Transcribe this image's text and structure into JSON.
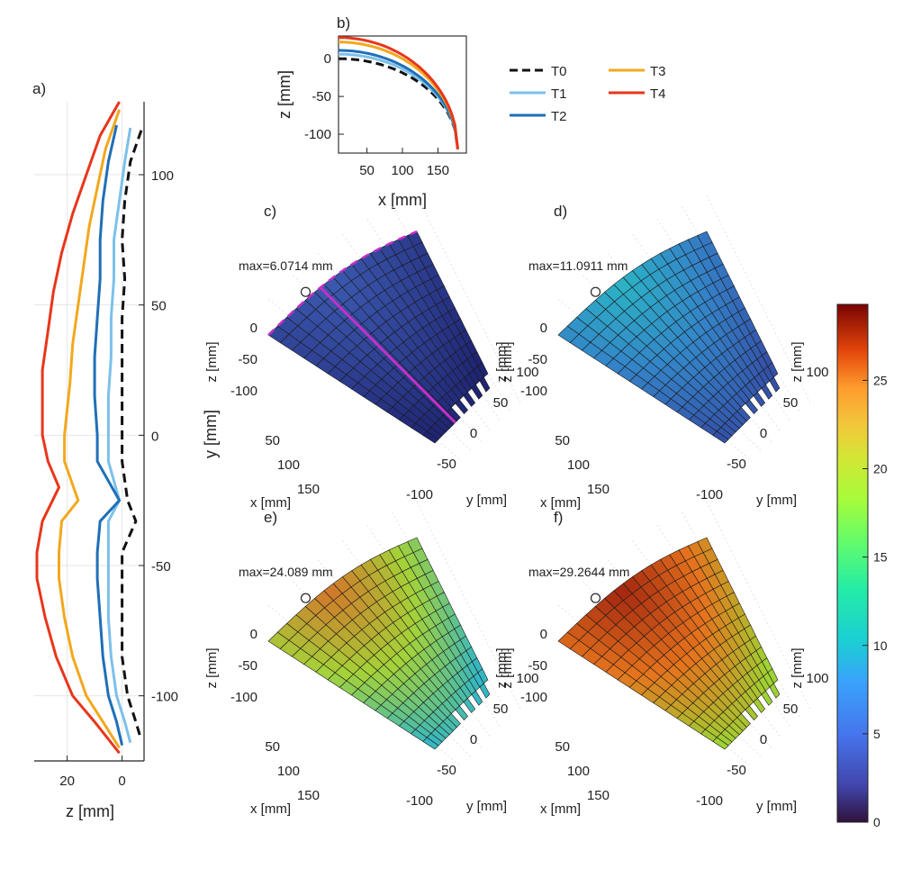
{
  "colors": {
    "T0": "#111111",
    "T1": "#7cc0ea",
    "T2": "#1f6fb7",
    "T3": "#f2a81d",
    "T4": "#e8361b",
    "highlight": "#c62fc6"
  },
  "panel_labels": {
    "a": "a)",
    "b": "b)",
    "c": "c)",
    "d": "d)",
    "e": "e)",
    "f": "f)"
  },
  "legend": [
    {
      "key": "T0",
      "label": "T0",
      "color": "#111111",
      "style": "dashed"
    },
    {
      "key": "T1",
      "label": "T1",
      "color": "#7cc0ea",
      "style": "solid"
    },
    {
      "key": "T2",
      "label": "T2",
      "color": "#1f6fb7",
      "style": "solid"
    },
    {
      "key": "T3",
      "label": "T3",
      "color": "#f2a81d",
      "style": "solid"
    },
    {
      "key": "T4",
      "label": "T4",
      "color": "#e8361b",
      "style": "solid"
    }
  ],
  "surface_axes": {
    "z_label": "z [mm]",
    "x_label": "x [mm]",
    "y_label": "y [mm]",
    "c_y_label": "y [mm]",
    "z_ticks": [
      "0",
      "-50",
      "-100"
    ],
    "x_ticks": [
      "50",
      "100",
      "150"
    ],
    "y_ticks": [
      "-100",
      "-50",
      "0",
      "50",
      "100"
    ]
  },
  "chart_data": [
    {
      "id": "a",
      "type": "line",
      "xlabel": "z [mm]",
      "ylabel": "",
      "x_ticks": [
        20,
        0
      ],
      "y_ticks": [
        100,
        50,
        0,
        -50,
        -100
      ],
      "xlim": [
        32,
        -8
      ],
      "ylim": [
        -125,
        128
      ],
      "series": [
        {
          "name": "T0",
          "y": [
            117,
            105,
            90,
            75,
            60,
            45,
            30,
            15,
            0,
            -10,
            -25,
            -33,
            -45,
            -55,
            -70,
            -85,
            -100,
            -110,
            -117
          ],
          "z": [
            -7,
            -3,
            -1,
            0,
            -1,
            0,
            0,
            0,
            0,
            0,
            -2,
            -5,
            0,
            0,
            0,
            0,
            -2,
            -5,
            -7
          ]
        },
        {
          "name": "T1",
          "y": [
            118,
            105,
            90,
            75,
            60,
            45,
            30,
            15,
            0,
            -10,
            -25,
            -33,
            -45,
            -55,
            -70,
            -85,
            -100,
            -110,
            -118
          ],
          "z": [
            -3,
            -1,
            1,
            3,
            3,
            4,
            4,
            5,
            5,
            5,
            1,
            5,
            5,
            5,
            5,
            4,
            2,
            -1,
            -3
          ]
        },
        {
          "name": "T2",
          "y": [
            119,
            105,
            90,
            75,
            60,
            45,
            30,
            15,
            0,
            -10,
            -25,
            -33,
            -45,
            -55,
            -70,
            -85,
            -100,
            -110,
            -119
          ],
          "z": [
            2,
            5,
            7,
            8,
            8,
            9,
            10,
            10,
            9,
            9,
            1,
            8,
            9,
            9,
            8,
            7,
            5,
            2,
            0
          ]
        },
        {
          "name": "T3",
          "y": [
            125,
            110,
            95,
            80,
            65,
            50,
            35,
            20,
            0,
            -10,
            -25,
            -33,
            -45,
            -55,
            -70,
            -85,
            -100,
            -110,
            -120
          ],
          "z": [
            1,
            6,
            9,
            12,
            14,
            16,
            18,
            19,
            21,
            21,
            16,
            22,
            23,
            23,
            21,
            18,
            13,
            7,
            1
          ]
        },
        {
          "name": "T4",
          "y": [
            128,
            115,
            100,
            85,
            70,
            55,
            40,
            25,
            0,
            -10,
            -20,
            -33,
            -45,
            -55,
            -70,
            -85,
            -100,
            -110,
            -122
          ],
          "z": [
            1,
            8,
            13,
            18,
            22,
            25,
            27,
            29,
            29,
            27,
            23,
            29,
            31,
            31,
            28,
            24,
            18,
            10,
            1
          ]
        }
      ]
    },
    {
      "id": "b",
      "type": "line",
      "xlabel": "x [mm]",
      "ylabel": "z [mm]",
      "x_ticks": [
        50,
        100,
        150
      ],
      "y_ticks": [
        0,
        -50,
        -100
      ],
      "xlim": [
        10,
        190
      ],
      "ylim": [
        -125,
        30
      ],
      "series": [
        {
          "name": "T0",
          "offset": 0
        },
        {
          "name": "T1",
          "offset": 6
        },
        {
          "name": "T2",
          "offset": 11
        },
        {
          "name": "T3",
          "offset": 22
        },
        {
          "name": "T4",
          "offset": 28
        }
      ]
    },
    {
      "id": "c",
      "type": "surface",
      "title": "c)",
      "max_label": "max=6.0714 mm",
      "max_value": 6.0714,
      "palette": [
        "#1f2472",
        "#2f4194",
        "#3b5ab0"
      ]
    },
    {
      "id": "d",
      "type": "surface",
      "title": "d)",
      "max_label": "max=11.0911 mm",
      "max_value": 11.0911,
      "palette": [
        "#3451a8",
        "#3484c8",
        "#2bb4c5"
      ]
    },
    {
      "id": "e",
      "type": "surface",
      "title": "e)",
      "max_label": "max=24.089 mm",
      "max_value": 24.089,
      "palette": [
        "#34b7c3",
        "#a5d238",
        "#d3742a"
      ]
    },
    {
      "id": "f",
      "type": "surface",
      "title": "f)",
      "max_label": "max=29.2644 mm",
      "max_value": 29.2644,
      "palette": [
        "#9ed333",
        "#e5731d",
        "#a1240f"
      ]
    },
    {
      "id": "colorbar",
      "type": "heatmap",
      "ticks": [
        0,
        5,
        10,
        15,
        20,
        25
      ],
      "min": 0,
      "max": 29.3
    }
  ]
}
